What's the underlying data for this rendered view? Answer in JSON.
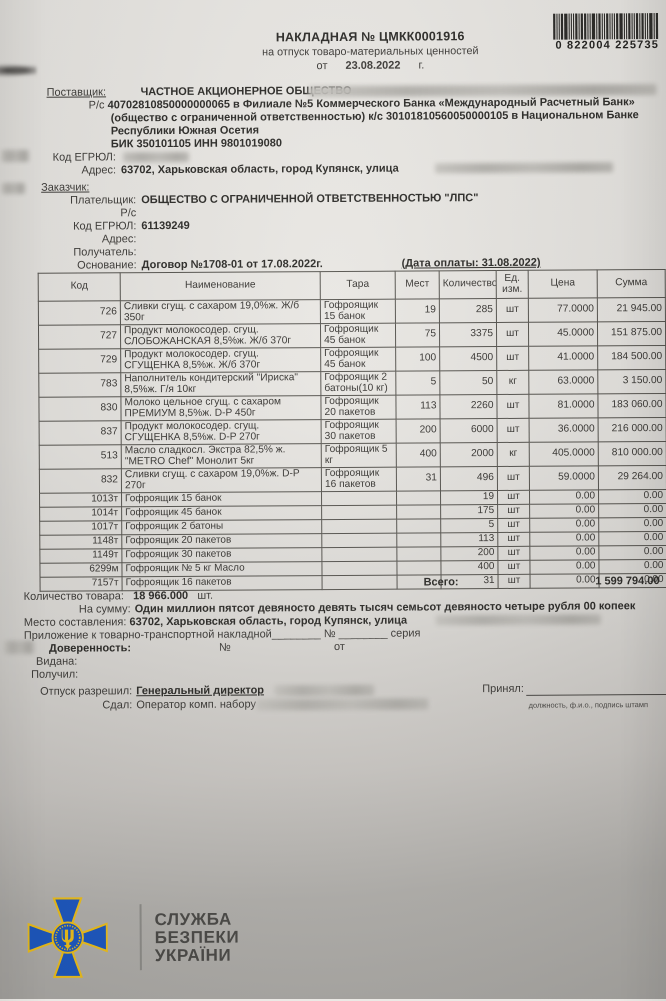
{
  "header": {
    "title": "НАКЛАДНАЯ № ЦМКК0001916",
    "subtitle": "на отпуск товаро-материальных ценностей",
    "date_prefix": "от",
    "date": "23.08.2022",
    "date_suffix": "г.",
    "barcode_number": "0 822004 225735"
  },
  "supplier": {
    "label": "Поставщик:",
    "name": "ЧАСТНОЕ АКЦИОНЕРНОЕ ОБЩЕСТВО",
    "account_label": "Р/с",
    "account_line1": "40702810850000000065 в Филиале №5 Коммерческого Банка «Международный Расчетный Банк»",
    "account_line2": "(общество с ограниченной ответственностью) к/с 30101810560050000105 в Национальном Банке",
    "account_line3": "Республики Южная Осетия",
    "bik_inn": "БИК 350101105 ИНН 9801019080",
    "egrul_label": "Код ЕГРЮЛ:",
    "address_label": "Адрес:",
    "address": "63702, Харьковская область, город Купянск, улица"
  },
  "customer": {
    "label": "Заказчик:",
    "payer_label": "Плательщик:",
    "payer": "ОБЩЕСТВО С ОГРАНИЧЕННОЙ ОТВЕТСТВЕННОСТЬЮ \"ЛПС\"",
    "account_label": "Р/с",
    "egrul_label": "Код ЕГРЮЛ:",
    "egrul": "61139249",
    "address_label": "Адрес:",
    "receiver_label": "Получатель:",
    "basis_label": "Основание:",
    "basis": "Договор №1708-01 от 17.08.2022г.",
    "payment_date": "(Дата оплаты: 31.08.2022)"
  },
  "table": {
    "headers": [
      "Код",
      "Наименование",
      "Тара",
      "Мест",
      "Количество",
      "Ед. изм.",
      "Цена",
      "Сумма"
    ],
    "rows": [
      [
        "726",
        "Сливки сгущ. с сахаром 19,0%ж. Ж/б 350г",
        "Гофроящик 15 банок",
        "19",
        "285",
        "шт",
        "77.0000",
        "21 945.00"
      ],
      [
        "727",
        "Продукт молокосодер. сгущ. СЛОБОЖАНСКАЯ 8,5%ж. Ж/б 370г",
        "Гофроящик 45 банок",
        "75",
        "3375",
        "шт",
        "45.0000",
        "151 875.00"
      ],
      [
        "729",
        "Продукт молокосодер. сгущ. СГУЩЕНКА 8,5%ж. Ж/б 370г",
        "Гофроящик 45 банок",
        "100",
        "4500",
        "шт",
        "41.0000",
        "184 500.00"
      ],
      [
        "783",
        "Наполнитель кондитерский \"Ириска\" 8,5%ж. Г/я 10кг",
        "Гофроящик 2 батоны(10 кг)",
        "5",
        "50",
        "кг",
        "63.0000",
        "3 150.00"
      ],
      [
        "830",
        "Молоко цельное сгущ. с сахаром ПРЕМИУМ 8,5%ж. D-P 450г",
        "Гофроящик 20 пакетов",
        "113",
        "2260",
        "шт",
        "81.0000",
        "183 060.00"
      ],
      [
        "837",
        "Продукт молокосодер. сгущ. СГУЩЕНКА 8,5%ж. D-P 270г",
        "Гофроящик 30 пакетов",
        "200",
        "6000",
        "шт",
        "36.0000",
        "216 000.00"
      ],
      [
        "513",
        "Масло сладкосл. Экстра 82,5% ж. \"METRO Chef\" Монолит 5кг",
        "Гофроящик 5 кг",
        "400",
        "2000",
        "кг",
        "405.0000",
        "810 000.00"
      ],
      [
        "832",
        "Сливки сгущ. с сахаром 19,0%ж. D-P 270г",
        "Гофроящик 16 пакетов",
        "31",
        "496",
        "шт",
        "59.0000",
        "29 264.00"
      ],
      [
        "1013т",
        "Гофроящик 15 банок",
        "",
        "",
        "19",
        "шт",
        "0.00",
        "0.00"
      ],
      [
        "1014т",
        "Гофроящик 45 банок",
        "",
        "",
        "175",
        "шт",
        "0.00",
        "0.00"
      ],
      [
        "1017т",
        "Гофроящик 2 батоны",
        "",
        "",
        "5",
        "шт",
        "0.00",
        "0.00"
      ],
      [
        "1148т",
        "Гофроящик 20 пакетов",
        "",
        "",
        "113",
        "шт",
        "0.00",
        "0.00"
      ],
      [
        "1149т",
        "Гофроящик 30 пакетов",
        "",
        "",
        "200",
        "шт",
        "0.00",
        "0.00"
      ],
      [
        "6299м",
        "Гофроящик № 5 кг Масло",
        "",
        "",
        "400",
        "шт",
        "0.00",
        "0.00"
      ],
      [
        "7157т",
        "Гофроящик 16 пакетов",
        "",
        "",
        "31",
        "шт",
        "0.00",
        "0.00"
      ]
    ],
    "total_label": "Всего:",
    "total": "1 599 794.00"
  },
  "footer": {
    "qty_label": "Количество товара:",
    "qty": "18 966.000",
    "qty_unit": "шт.",
    "sum_label": "На сумму:",
    "sum_words": "Один миллион пятсот девяносто девять тысяч семьсот девяносто четыре рубля 00 копеек",
    "place_label": "Место составления:",
    "place": "63702, Харьковская область, город Купянск, улица",
    "attachment_line": "Приложение к товарно-транспортной накладной________ № ________ серия",
    "power_label": "Доверенность:",
    "power_no": "№",
    "power_from": "от",
    "issued_label": "Видана:",
    "received_label": "Получил:",
    "release_label": "Отпуск разрешил:",
    "release_value": "Генеральный директор",
    "handed_label": "Сдал:",
    "handed_value": "Оператор комп. набору",
    "accepted_label": "Принял:",
    "accepted_note": "должность, ф.и.о., подпись штамп"
  },
  "watermark": {
    "org_line1": "СЛУЖБА",
    "org_line2": "БЕЗПЕКИ",
    "org_line3": "УКРАЇНИ",
    "cross_blue": "#1e5ac4",
    "cross_yellow": "#f2c31c"
  }
}
